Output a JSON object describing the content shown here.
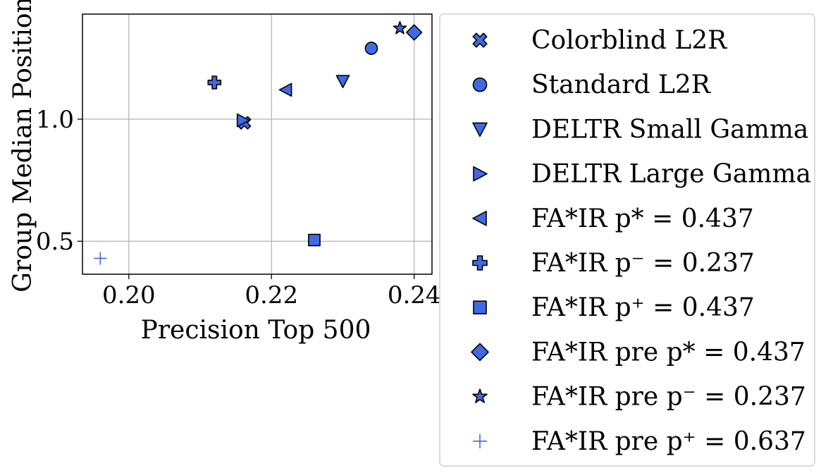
{
  "chart_data": {
    "type": "scatter",
    "xlabel": "Precision Top 500",
    "ylabel": "Group Median Position",
    "xlim": [
      0.1935,
      0.2425
    ],
    "ylim": [
      0.365,
      1.43
    ],
    "xticks": [
      0.2,
      0.22,
      0.24
    ],
    "xtick_labels": [
      "0.20",
      "0.22",
      "0.24"
    ],
    "yticks": [
      0.5,
      1.0
    ],
    "ytick_labels": [
      "0.5",
      "1.0"
    ],
    "grid": true,
    "legend_position": "outside-right",
    "marker_color": "#4169e1",
    "series": [
      {
        "name": "Colorblind L2R",
        "marker": "x-filled",
        "points": [
          [
            0.2162,
            0.985
          ]
        ]
      },
      {
        "name": "Standard L2R",
        "marker": "circle",
        "points": [
          [
            0.234,
            1.29
          ]
        ]
      },
      {
        "name": "DELTR Small Gamma",
        "marker": "triangle-down",
        "points": [
          [
            0.23,
            1.155
          ]
        ]
      },
      {
        "name": "DELTR Large Gamma",
        "marker": "triangle-right",
        "points": [
          [
            0.216,
            0.995
          ]
        ]
      },
      {
        "name": "FA*IR p* = 0.437",
        "marker": "triangle-left",
        "points": [
          [
            0.222,
            1.12
          ]
        ]
      },
      {
        "name": "FA*IR p⁻ = 0.237",
        "marker": "plus-filled",
        "points": [
          [
            0.212,
            1.15
          ]
        ]
      },
      {
        "name": "FA*IR p⁺ = 0.437",
        "marker": "square",
        "points": [
          [
            0.226,
            0.505
          ]
        ]
      },
      {
        "name": "FA*IR pre p* = 0.437",
        "marker": "diamond",
        "points": [
          [
            0.24,
            1.355
          ]
        ]
      },
      {
        "name": "FA*IR pre p⁻ = 0.237",
        "marker": "star",
        "points": [
          [
            0.238,
            1.372
          ]
        ]
      },
      {
        "name": "FA*IR pre p⁺ = 0.637",
        "marker": "plus",
        "points": [
          [
            0.196,
            0.43
          ]
        ]
      }
    ]
  }
}
